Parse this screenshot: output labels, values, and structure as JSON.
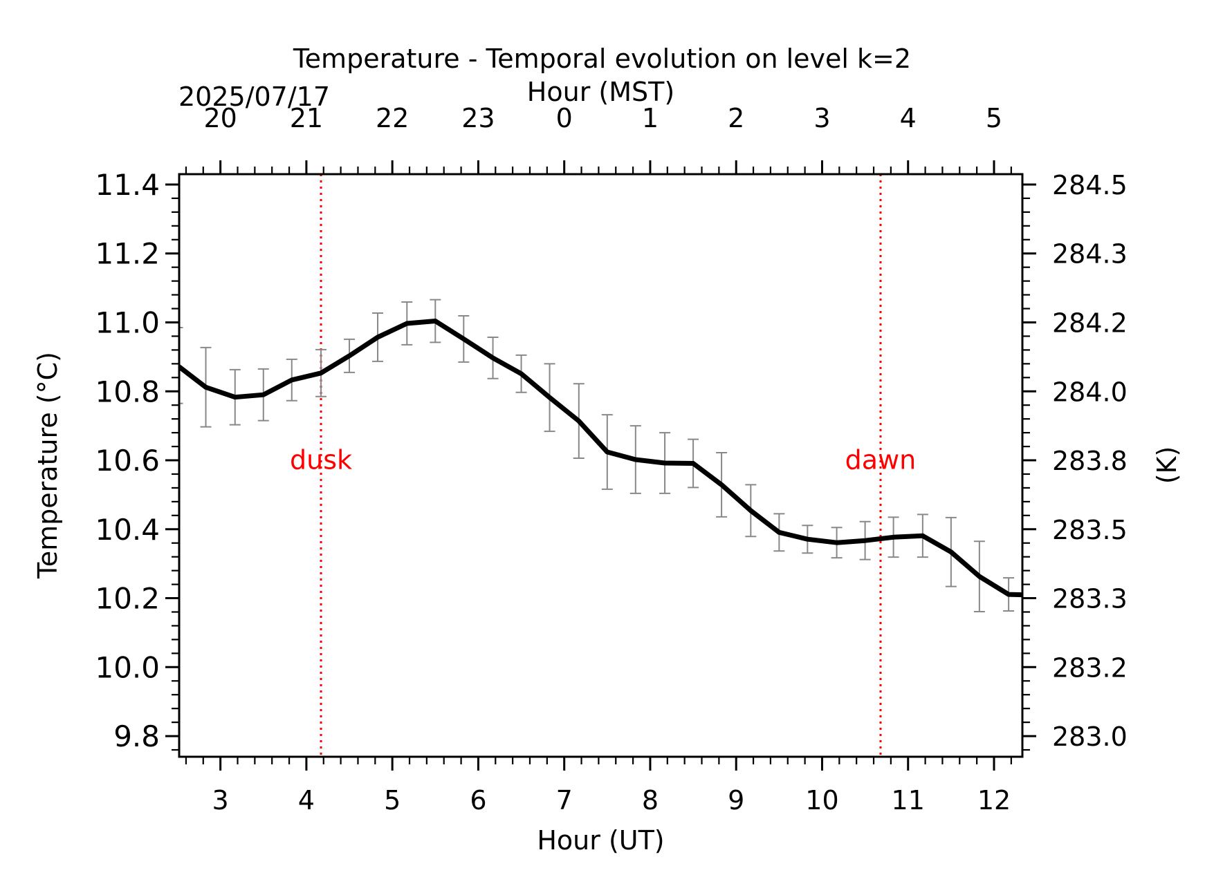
{
  "chart_data": {
    "type": "line",
    "title": "Temperature - Temporal evolution on level k=2",
    "date_label": "2025/07/17",
    "xlabel": "Hour (UT)",
    "xlabel_top": "Hour (MST)",
    "ylabel": "Temperature (°C)",
    "ylabel_right": "(K)",
    "xlim": [
      2.52,
      12.33
    ],
    "ylim": [
      9.74,
      11.43
    ],
    "x_ticks": [
      3,
      4,
      5,
      6,
      7,
      8,
      9,
      10,
      11,
      12
    ],
    "x_tick_labels": [
      "3",
      "4",
      "5",
      "6",
      "7",
      "8",
      "9",
      "10",
      "11",
      "12"
    ],
    "top_ticks_ut": [
      3,
      4,
      5,
      6,
      7,
      8,
      9,
      10,
      11,
      12
    ],
    "top_tick_labels": [
      "20",
      "21",
      "22",
      "23",
      "0",
      "1",
      "2",
      "3",
      "4",
      "5"
    ],
    "y_ticks": [
      9.8,
      10.0,
      10.2,
      10.4,
      10.6,
      10.8,
      11.0,
      11.2,
      11.4
    ],
    "y_tick_labels": [
      "9.8",
      "10.0",
      "10.2",
      "10.4",
      "10.6",
      "10.8",
      "11.0",
      "11.2",
      "11.4"
    ],
    "right_ticks_c": [
      9.8,
      10.0,
      10.2,
      10.4,
      10.6,
      10.8,
      11.0,
      11.2,
      11.4
    ],
    "right_tick_labels": [
      "283.0",
      "283.2",
      "283.3",
      "283.5",
      "283.8",
      "284.0",
      "284.2",
      "284.3",
      "284.5"
    ],
    "grid": false,
    "series": [
      {
        "color": "#000000",
        "x": [
          2.5,
          2.83,
          3.17,
          3.5,
          3.83,
          4.17,
          4.5,
          4.83,
          5.17,
          5.5,
          5.83,
          6.17,
          6.5,
          6.83,
          7.17,
          7.5,
          7.83,
          8.17,
          8.5,
          8.83,
          9.17,
          9.5,
          9.83,
          10.17,
          10.5,
          10.83,
          11.17,
          11.5,
          11.83,
          12.17,
          12.33
        ],
        "y": [
          10.875,
          10.812,
          10.783,
          10.79,
          10.833,
          10.853,
          10.903,
          10.957,
          10.997,
          11.004,
          10.952,
          10.897,
          10.851,
          10.782,
          10.714,
          10.624,
          10.602,
          10.592,
          10.591,
          10.529,
          10.454,
          10.391,
          10.371,
          10.361,
          10.367,
          10.377,
          10.381,
          10.334,
          10.263,
          10.211,
          10.21
        ],
        "error": [
          0.11,
          0.115,
          0.08,
          0.075,
          0.06,
          0.068,
          0.048,
          0.07,
          0.062,
          0.062,
          0.067,
          0.06,
          0.054,
          0.098,
          0.108,
          0.108,
          0.098,
          0.088,
          0.07,
          0.093,
          0.075,
          0.054,
          0.04,
          0.044,
          0.055,
          0.058,
          0.062,
          0.1,
          0.102,
          0.048,
          0.0
        ],
        "error_color": "#888888"
      }
    ],
    "vlines": [
      {
        "x": 4.17,
        "label": "dusk",
        "color": "#ff0000",
        "style": "dotted"
      },
      {
        "x": 10.68,
        "label": "dawn",
        "color": "#ff0000",
        "style": "dotted"
      }
    ]
  }
}
